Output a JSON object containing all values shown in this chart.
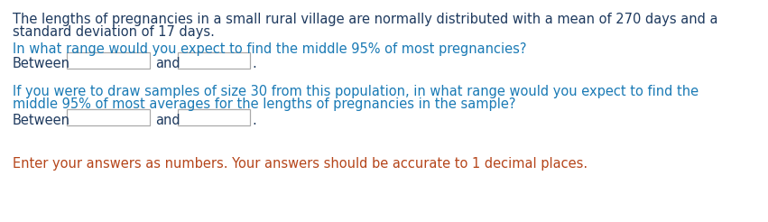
{
  "bg_color": "#ffffff",
  "color_dark": "#1e3a5f",
  "color_blue": "#1a7ab5",
  "color_last": "#b5451a",
  "line1": "The lengths of pregnancies in a small rural village are normally distributed with a mean of 270 days and a",
  "line2": "standard deviation of 17 days.",
  "line3": "In what range would you expect to find the middle 95% of most pregnancies?",
  "between1": "Between",
  "and1": "and",
  "line5a": "If you were to draw samples of size 30 from this population, in what range would you expect to find the",
  "line5b": "middle 95% of most averages for the lengths of pregnancies in the sample?",
  "between2": "Between",
  "and2": "and",
  "line7": "Enter your answers as numbers. Your answers should be accurate to 1 decimal places.",
  "font_size": 10.5,
  "dpi": 100,
  "fig_w": 8.51,
  "fig_h": 2.46
}
